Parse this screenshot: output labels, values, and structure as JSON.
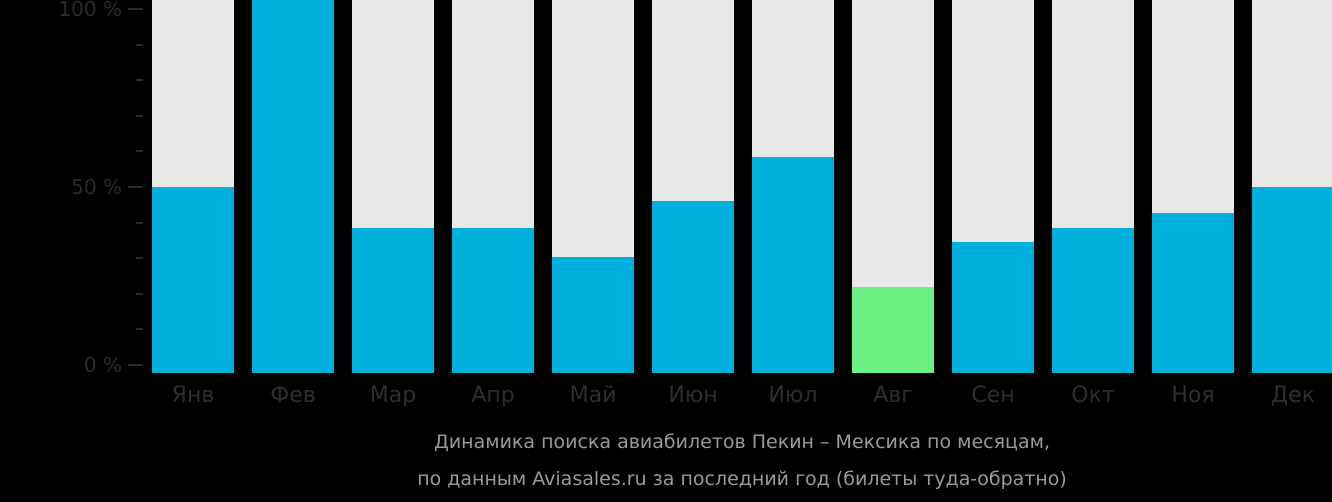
{
  "chart_data": {
    "type": "bar",
    "title": "Динамика поиска авиабилетов Пекин – Мексика по месяцам,",
    "subtitle": "по данным Aviasales.ru за последний год (билеты туда-обратно)",
    "categories": [
      "Янв",
      "Фев",
      "Мар",
      "Апр",
      "Май",
      "Июн",
      "Июл",
      "Авг",
      "Сен",
      "Окт",
      "Ноя",
      "Дек"
    ],
    "values": [
      50,
      100,
      39,
      39,
      31,
      46,
      58,
      23,
      35,
      39,
      43,
      50
    ],
    "highlight_index": 7,
    "xlabel": "",
    "ylabel": "",
    "ylim": [
      0,
      100
    ],
    "yticks": [
      "0 %",
      "50 %",
      "100 %"
    ],
    "grid": false,
    "legend": null,
    "colors": {
      "bar": "#00b0dc",
      "highlight": "#6cf184",
      "track": "#e8e8e8",
      "background": "#000000"
    }
  },
  "axis": {
    "y_labels": [
      {
        "text": "100 %",
        "value": 100
      },
      {
        "text": "50 %",
        "value": 50
      },
      {
        "text": "0 %",
        "value": 0
      }
    ]
  },
  "caption": {
    "line1": "Динамика поиска авиабилетов Пекин – Мексика по месяцам,",
    "line2": "по данным Aviasales.ru за последний год (билеты туда-обратно)"
  }
}
